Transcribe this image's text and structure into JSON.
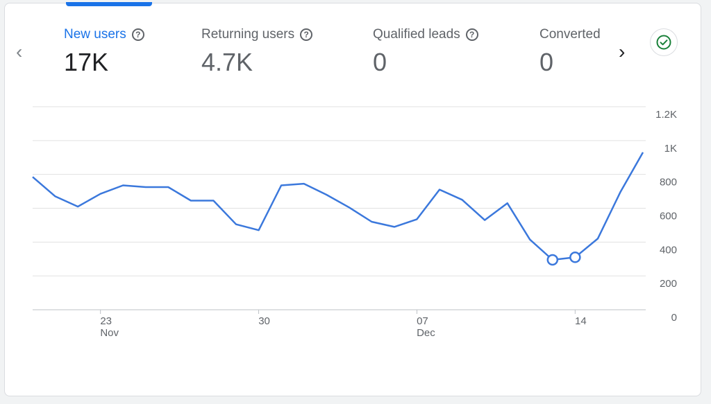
{
  "metrics": [
    {
      "label": "New users",
      "value": "17K",
      "active": true
    },
    {
      "label": "Returning users",
      "value": "4.7K",
      "active": false
    },
    {
      "label": "Qualified leads",
      "value": "0",
      "active": false
    },
    {
      "label": "Converted",
      "value": "0",
      "active": false
    }
  ],
  "nav": {
    "prev_icon": "chevron-left-icon",
    "next_icon": "chevron-right-icon"
  },
  "status_icon": "check-circle-icon",
  "colors": {
    "accent": "#1a73e8",
    "line": "#3b78dc",
    "status": "#188038"
  },
  "chart_data": {
    "type": "line",
    "x_tick_labels": [
      {
        "day": "23",
        "month": "Nov",
        "index": 3
      },
      {
        "day": "30",
        "month": "",
        "index": 10
      },
      {
        "day": "07",
        "month": "Dec",
        "index": 17
      },
      {
        "day": "14",
        "month": "",
        "index": 24
      }
    ],
    "y_ticks": [
      "0",
      "200",
      "400",
      "600",
      "800",
      "1K",
      "1.2K"
    ],
    "y_tick_values": [
      0,
      200,
      400,
      600,
      800,
      1000,
      1200
    ],
    "ylim": [
      0,
      1200
    ],
    "series": [
      {
        "values": [
          785,
          670,
          610,
          685,
          735,
          725,
          725,
          645,
          645,
          505,
          470,
          735,
          745,
          680,
          605,
          520,
          490,
          535,
          710,
          650,
          530,
          630,
          415,
          295,
          310,
          420,
          695,
          930
        ],
        "highlight_points": [
          23,
          24
        ]
      }
    ],
    "grid": true
  }
}
